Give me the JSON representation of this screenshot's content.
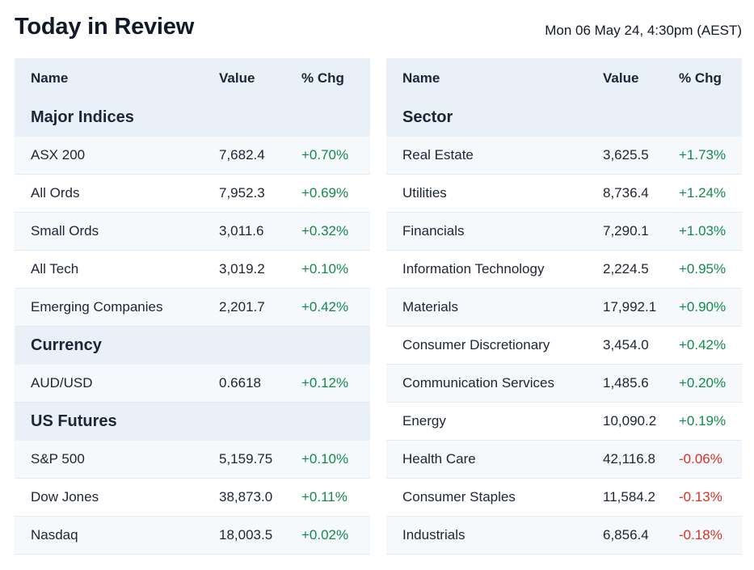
{
  "header": {
    "title": "Today in Review",
    "timestamp": "Mon 06 May 24, 4:30pm (AEST)"
  },
  "colors": {
    "positive": "#138a4b",
    "negative": "#d93025",
    "header_bg": "#e9f0f8"
  },
  "left_table": {
    "columns": {
      "name": "Name",
      "value": "Value",
      "change": "% Chg"
    },
    "groups": [
      {
        "title": "Major Indices",
        "rows": [
          {
            "name": "ASX 200",
            "value": "7,682.4",
            "change": "+0.70%"
          },
          {
            "name": "All Ords",
            "value": "7,952.3",
            "change": "+0.69%"
          },
          {
            "name": "Small Ords",
            "value": "3,011.6",
            "change": "+0.32%"
          },
          {
            "name": "All Tech",
            "value": "3,019.2",
            "change": "+0.10%"
          },
          {
            "name": "Emerging Companies",
            "value": "2,201.7",
            "change": "+0.42%"
          }
        ]
      },
      {
        "title": "Currency",
        "rows": [
          {
            "name": "AUD/USD",
            "value": "0.6618",
            "change": "+0.12%"
          }
        ]
      },
      {
        "title": "US Futures",
        "rows": [
          {
            "name": "S&P 500",
            "value": "5,159.75",
            "change": "+0.10%"
          },
          {
            "name": "Dow Jones",
            "value": "38,873.0",
            "change": "+0.11%"
          },
          {
            "name": "Nasdaq",
            "value": "18,003.5",
            "change": "+0.02%"
          }
        ]
      }
    ]
  },
  "right_table": {
    "columns": {
      "name": "Name",
      "value": "Value",
      "change": "% Chg"
    },
    "group_title": "Sector",
    "rows": [
      {
        "name": "Real Estate",
        "value": "3,625.5",
        "change": "+1.73%"
      },
      {
        "name": "Utilities",
        "value": "8,736.4",
        "change": "+1.24%"
      },
      {
        "name": "Financials",
        "value": "7,290.1",
        "change": "+1.03%"
      },
      {
        "name": "Information Technology",
        "value": "2,224.5",
        "change": "+0.95%"
      },
      {
        "name": "Materials",
        "value": "17,992.1",
        "change": "+0.90%"
      },
      {
        "name": "Consumer Discretionary",
        "value": "3,454.0",
        "change": "+0.42%"
      },
      {
        "name": "Communication Services",
        "value": "1,485.6",
        "change": "+0.20%"
      },
      {
        "name": "Energy",
        "value": "10,090.2",
        "change": "+0.19%"
      },
      {
        "name": "Health Care",
        "value": "42,116.8",
        "change": "-0.06%"
      },
      {
        "name": "Consumer Staples",
        "value": "11,584.2",
        "change": "-0.13%"
      },
      {
        "name": "Industrials",
        "value": "6,856.4",
        "change": "-0.18%"
      }
    ]
  }
}
